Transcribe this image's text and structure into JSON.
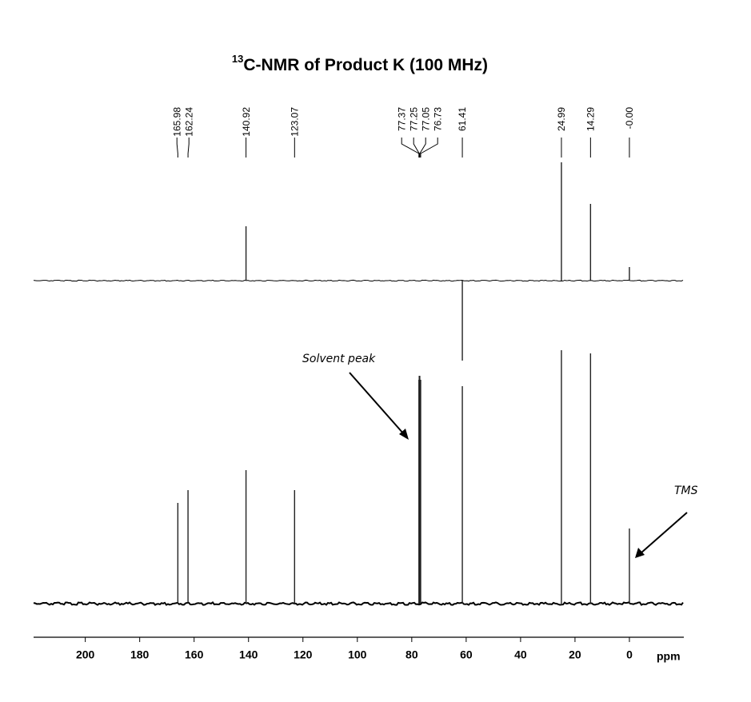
{
  "chart_data": {
    "type": "nmr",
    "title_sup": "13",
    "title": "C-NMR of Product K (100 MHz)",
    "xlabel": "ppm",
    "xlim": [
      219,
      -20
    ],
    "xticks": [
      200,
      180,
      160,
      140,
      120,
      100,
      80,
      60,
      40,
      20,
      0
    ],
    "color": "#222222",
    "peak_labels": [
      165.98,
      162.24,
      140.92,
      123.07,
      77.37,
      77.25,
      77.05,
      76.73,
      61.41,
      24.99,
      14.29,
      {
        "value": 0,
        "label": "-0.00"
      }
    ],
    "annotations": [
      "Solvent peak",
      "TMS"
    ],
    "series": [
      {
        "x": [
          140.92,
          61.41,
          24.99,
          14.29,
          0.0
        ],
        "values": [
          68,
          -100,
          148,
          96,
          17
        ],
        "ylim": [
          -120,
          150
        ]
      },
      {
        "x": [
          165.98,
          162.24,
          140.92,
          123.07,
          77.37,
          77.25,
          77.05,
          76.73,
          61.41,
          24.99,
          14.29,
          0.0
        ],
        "values": [
          126,
          142,
          167,
          142,
          280,
          285,
          285,
          280,
          272,
          317,
          313,
          94
        ],
        "ylim": [
          -10,
          330
        ]
      }
    ]
  }
}
